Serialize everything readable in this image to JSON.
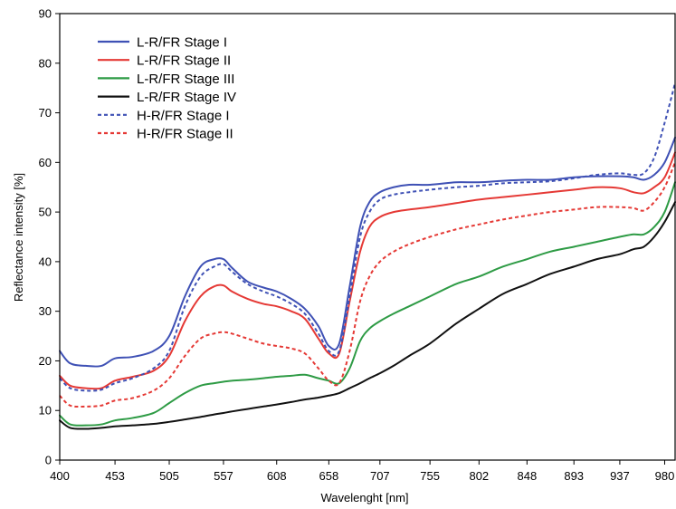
{
  "chart_data": {
    "type": "line",
    "title": "",
    "xlabel": "Wavelenght [nm]",
    "ylabel": "Reflectance intensity [%]",
    "xlim": [
      400,
      990
    ],
    "ylim": [
      0,
      90
    ],
    "x_tick_labels": [
      "400",
      "453",
      "505",
      "557",
      "608",
      "658",
      "707",
      "755",
      "802",
      "848",
      "893",
      "937",
      "980"
    ],
    "y_tick_labels": [
      "0",
      "10",
      "20",
      "30",
      "40",
      "50",
      "60",
      "70",
      "80",
      "90"
    ],
    "grid": false,
    "legend_position": "top-left",
    "series": [
      {
        "name": "L-R/FR Stage I",
        "color": "#3f51b5",
        "dash": "solid",
        "x": [
          400,
          410,
          425,
          440,
          453,
          470,
          490,
          505,
          520,
          535,
          548,
          557,
          565,
          580,
          595,
          608,
          622,
          635,
          648,
          658,
          668,
          678,
          688,
          697,
          707,
          720,
          735,
          755,
          780,
          802,
          825,
          848,
          870,
          893,
          915,
          937,
          950,
          960,
          970,
          980,
          990
        ],
        "y": [
          22,
          19.5,
          19,
          19,
          20.5,
          20.8,
          22,
          25,
          33,
          39,
          40.5,
          40.5,
          38.8,
          36,
          34.8,
          34,
          32.5,
          30.5,
          27,
          23,
          23.5,
          35,
          47,
          52,
          54,
          55,
          55.5,
          55.5,
          56,
          56,
          56.3,
          56.5,
          56.5,
          57,
          57.2,
          57.2,
          57,
          56.5,
          57.5,
          60,
          65
        ]
      },
      {
        "name": "L-R/FR Stage II",
        "color": "#e53935",
        "dash": "solid",
        "x": [
          400,
          410,
          425,
          440,
          453,
          470,
          490,
          505,
          520,
          535,
          548,
          557,
          565,
          580,
          595,
          608,
          622,
          635,
          648,
          658,
          668,
          678,
          688,
          697,
          707,
          720,
          735,
          755,
          780,
          802,
          825,
          848,
          870,
          893,
          915,
          937,
          950,
          960,
          970,
          980,
          990
        ],
        "y": [
          17,
          15,
          14.5,
          14.5,
          16,
          16.8,
          18,
          21,
          28,
          33,
          35,
          35.2,
          34,
          32.5,
          31.5,
          31,
          30,
          28.5,
          24.5,
          21.5,
          21.5,
          32,
          42,
          47,
          49,
          50,
          50.5,
          51,
          51.8,
          52.5,
          53,
          53.5,
          54,
          54.5,
          55,
          54.8,
          54,
          53.8,
          55,
          57,
          62
        ]
      },
      {
        "name": "L-R/FR Stage III",
        "color": "#2e9b45",
        "dash": "solid",
        "x": [
          400,
          410,
          425,
          440,
          453,
          470,
          490,
          505,
          520,
          535,
          548,
          557,
          565,
          580,
          595,
          608,
          622,
          635,
          648,
          658,
          668,
          678,
          688,
          697,
          707,
          720,
          735,
          755,
          780,
          802,
          825,
          848,
          870,
          893,
          915,
          937,
          950,
          960,
          970,
          980,
          990
        ],
        "y": [
          9,
          7.2,
          7,
          7.2,
          8,
          8.5,
          9.5,
          11.5,
          13.5,
          15,
          15.5,
          15.8,
          16,
          16.2,
          16.5,
          16.8,
          17,
          17.2,
          16.5,
          16,
          15.5,
          18.5,
          24,
          26.5,
          28,
          29.5,
          31,
          33,
          35.5,
          37,
          39,
          40.5,
          42,
          43,
          44,
          45,
          45.5,
          45.5,
          47,
          50,
          56
        ]
      },
      {
        "name": "L-R/FR Stage IV",
        "color": "#111111",
        "dash": "solid",
        "x": [
          400,
          410,
          425,
          440,
          453,
          470,
          490,
          505,
          520,
          535,
          548,
          557,
          565,
          580,
          595,
          608,
          622,
          635,
          648,
          658,
          668,
          678,
          688,
          697,
          707,
          720,
          735,
          755,
          780,
          802,
          825,
          848,
          870,
          893,
          915,
          937,
          950,
          960,
          970,
          980,
          990
        ],
        "y": [
          8,
          6.5,
          6.3,
          6.5,
          6.8,
          7,
          7.3,
          7.7,
          8.2,
          8.7,
          9.2,
          9.5,
          9.8,
          10.3,
          10.8,
          11.2,
          11.7,
          12.2,
          12.6,
          13,
          13.5,
          14.5,
          15.5,
          16.5,
          17.5,
          19,
          21,
          23.5,
          27.5,
          30.5,
          33.5,
          35.5,
          37.5,
          39,
          40.5,
          41.5,
          42.5,
          43,
          45,
          48,
          52
        ]
      },
      {
        "name": "H-R/FR Stage I",
        "color": "#3f51b5",
        "dash": "dotted",
        "x": [
          400,
          410,
          425,
          440,
          453,
          470,
          490,
          505,
          520,
          535,
          548,
          557,
          565,
          580,
          595,
          608,
          622,
          635,
          648,
          658,
          668,
          678,
          688,
          697,
          707,
          720,
          735,
          755,
          780,
          802,
          825,
          848,
          870,
          893,
          915,
          937,
          950,
          960,
          970,
          980,
          990
        ],
        "y": [
          16.5,
          14.5,
          14,
          14.2,
          15.5,
          16.5,
          18.5,
          22,
          31,
          37,
          39,
          39.5,
          38,
          35.5,
          34,
          33,
          31.5,
          29.5,
          25.5,
          22,
          22,
          33,
          45,
          50,
          52.5,
          53.5,
          54,
          54.5,
          55,
          55.3,
          55.8,
          56,
          56.2,
          56.8,
          57.5,
          57.8,
          57.5,
          57.8,
          61,
          68,
          76
        ]
      },
      {
        "name": "H-R/FR Stage II",
        "color": "#e53935",
        "dash": "dotted",
        "x": [
          400,
          410,
          425,
          440,
          453,
          470,
          490,
          505,
          520,
          535,
          548,
          557,
          565,
          580,
          595,
          608,
          622,
          635,
          648,
          658,
          668,
          678,
          688,
          697,
          707,
          720,
          735,
          755,
          780,
          802,
          825,
          848,
          870,
          893,
          915,
          937,
          950,
          960,
          970,
          980,
          990
        ],
        "y": [
          13,
          11,
          10.8,
          11,
          12,
          12.5,
          14,
          16.5,
          21,
          24.5,
          25.5,
          25.8,
          25.5,
          24.5,
          23.5,
          23,
          22.5,
          21.5,
          18.5,
          16,
          15.5,
          22,
          32,
          37,
          40,
          42,
          43.5,
          45,
          46.5,
          47.5,
          48.5,
          49.3,
          50,
          50.5,
          51,
          51,
          50.8,
          50.3,
          52,
          55,
          60
        ]
      }
    ]
  }
}
